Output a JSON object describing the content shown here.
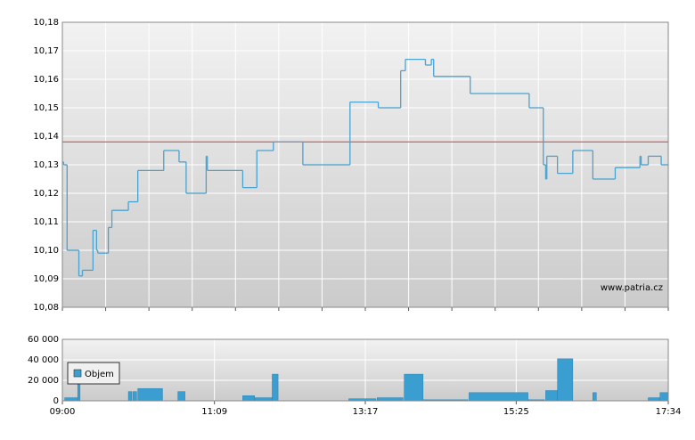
{
  "chart_data": [
    {
      "type": "line",
      "xlim": [
        "09:00",
        "17:34"
      ],
      "ylim": [
        10.08,
        10.18
      ],
      "yticks": [
        {
          "value": 10.08,
          "label": "10,08"
        },
        {
          "value": 10.09,
          "label": "10,09"
        },
        {
          "value": 10.1,
          "label": "10,10"
        },
        {
          "value": 10.11,
          "label": "10,11"
        },
        {
          "value": 10.12,
          "label": "10,12"
        },
        {
          "value": 10.13,
          "label": "10,13"
        },
        {
          "value": 10.14,
          "label": "10,14"
        },
        {
          "value": 10.15,
          "label": "10,15"
        },
        {
          "value": 10.16,
          "label": "10,16"
        },
        {
          "value": 10.17,
          "label": "10,17"
        },
        {
          "value": 10.18,
          "label": "10,18"
        }
      ],
      "reference_line": 10.138,
      "reference_color": "#e05a5a",
      "watermark": "www.patria.cz",
      "grid": true,
      "series": [
        {
          "color": "#4aa3d0",
          "x": [
            "09:00",
            "09:01",
            "09:04",
            "09:14",
            "09:17",
            "09:26",
            "09:29",
            "09:30",
            "09:39",
            "09:42",
            "09:56",
            "10:04",
            "10:26",
            "10:39",
            "10:45",
            "11:02",
            "11:03",
            "11:33",
            "11:45",
            "11:59",
            "12:24",
            "13:04",
            "13:28",
            "13:47",
            "13:51",
            "14:08",
            "14:13",
            "14:15",
            "14:46",
            "15:36",
            "15:48",
            "15:50",
            "15:51",
            "16:00",
            "16:13",
            "16:30",
            "16:49",
            "17:10",
            "17:11",
            "17:17",
            "17:28",
            "17:34"
          ],
          "values": [
            10.131,
            10.13,
            10.1,
            10.091,
            10.093,
            10.107,
            10.1,
            10.099,
            10.108,
            10.114,
            10.117,
            10.128,
            10.135,
            10.131,
            10.12,
            10.133,
            10.128,
            10.122,
            10.135,
            10.138,
            10.13,
            10.152,
            10.15,
            10.163,
            10.167,
            10.165,
            10.167,
            10.161,
            10.155,
            10.15,
            10.13,
            10.125,
            10.133,
            10.127,
            10.135,
            10.125,
            10.129,
            10.133,
            10.13,
            10.133,
            10.13,
            10.13
          ]
        }
      ]
    },
    {
      "type": "bar",
      "xlim": [
        "09:00",
        "17:34"
      ],
      "xticks": [
        "09:00",
        "11:09",
        "13:17",
        "15:25",
        "17:34"
      ],
      "ylim": [
        0,
        60000
      ],
      "yticks": [
        0,
        {
          "value": 20000,
          "label": "20 000"
        },
        {
          "value": 40000,
          "label": "40 000"
        },
        {
          "value": 60000,
          "label": "60 000"
        }
      ],
      "grid": true,
      "series": [
        {
          "name": "Objem",
          "color": "#3a9fd0",
          "x": [
            "09:02",
            "09:13",
            "09:56",
            "10:00",
            "10:04",
            "10:38",
            "11:33",
            "11:43",
            "11:58",
            "13:03",
            "13:27",
            "13:50",
            "14:06",
            "14:45",
            "15:35",
            "15:50",
            "16:00",
            "16:30",
            "17:17",
            "17:27"
          ],
          "x_end": [
            "09:13",
            "09:15",
            "09:59",
            "10:03",
            "10:25",
            "10:44",
            "11:43",
            "11:58",
            "12:03",
            "13:26",
            "13:49",
            "14:06",
            "14:44",
            "15:35",
            "15:49",
            "16:00",
            "16:13",
            "16:33",
            "17:27",
            "17:34"
          ],
          "values": [
            3000,
            30000,
            9000,
            9000,
            12000,
            9000,
            5000,
            3000,
            26000,
            2000,
            3000,
            26000,
            1000,
            8000,
            1000,
            10000,
            41000,
            8000,
            3000,
            8000
          ]
        }
      ]
    }
  ]
}
